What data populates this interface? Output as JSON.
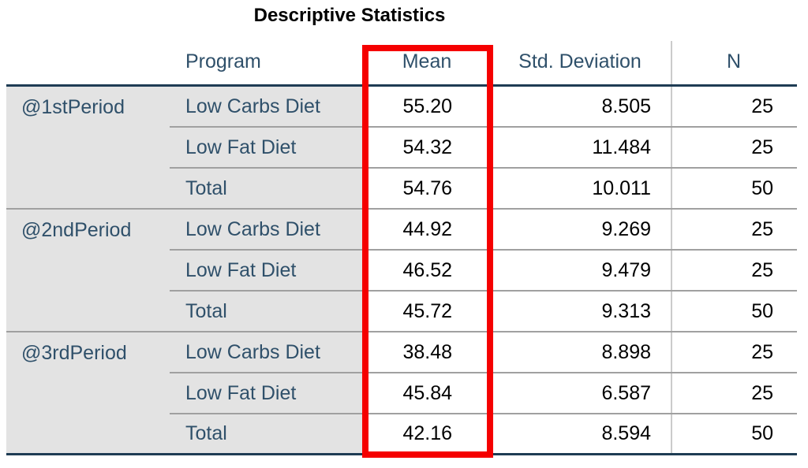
{
  "title": "Descriptive Statistics",
  "table": {
    "header": {
      "program": "Program",
      "mean": "Mean",
      "std_deviation": "Std. Deviation",
      "n": "N"
    },
    "groups": [
      {
        "label": "@1stPeriod",
        "rows": [
          {
            "program": "Low Carbs Diet",
            "mean": "55.20",
            "std": "8.505",
            "n": "25"
          },
          {
            "program": "Low Fat Diet",
            "mean": "54.32",
            "std": "11.484",
            "n": "25"
          },
          {
            "program": "Total",
            "mean": "54.76",
            "std": "10.011",
            "n": "50"
          }
        ]
      },
      {
        "label": "@2ndPeriod",
        "rows": [
          {
            "program": "Low Carbs Diet",
            "mean": "44.92",
            "std": "9.269",
            "n": "25"
          },
          {
            "program": "Low Fat Diet",
            "mean": "46.52",
            "std": "9.479",
            "n": "25"
          },
          {
            "program": "Total",
            "mean": "45.72",
            "std": "9.313",
            "n": "50"
          }
        ]
      },
      {
        "label": "@3rdPeriod",
        "rows": [
          {
            "program": "Low Carbs Diet",
            "mean": "38.48",
            "std": "8.898",
            "n": "25"
          },
          {
            "program": "Low Fat Diet",
            "mean": "45.84",
            "std": "6.587",
            "n": "25"
          },
          {
            "program": "Total",
            "mean": "42.16",
            "std": "8.594",
            "n": "50"
          }
        ]
      }
    ]
  },
  "annotation": {
    "highlighted_column": "Mean",
    "highlight_color": "#F50000"
  },
  "colors": {
    "header_text": "#2F506A",
    "value_text": "#000000",
    "stub_background": "#E3E3E3",
    "thick_rule": "#1E3C54",
    "row_rule": "#A0A0A0",
    "column_divider": "#CBCBCB"
  }
}
